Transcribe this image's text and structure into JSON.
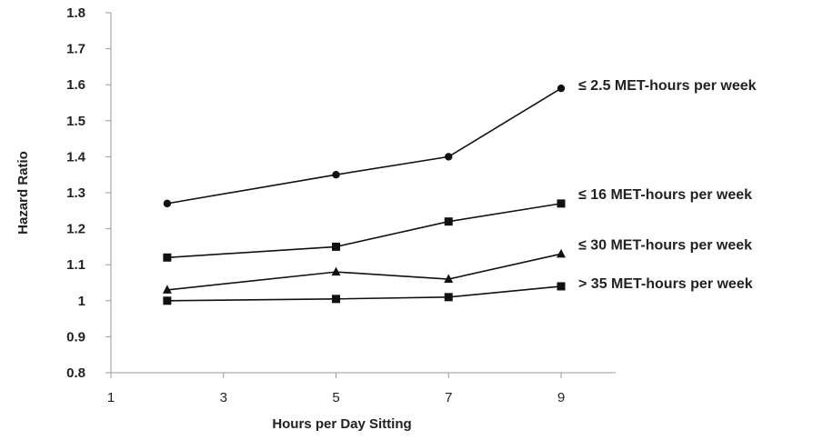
{
  "chart_data": {
    "type": "line",
    "xlabel": "Hours per Day Sitting",
    "ylabel": "Hazard Ratio",
    "x_ticks": [
      1,
      3,
      5,
      7,
      9
    ],
    "y_ticks": [
      "0.8",
      "0.9",
      "1",
      "1.1",
      "1.2",
      "1.3",
      "1.4",
      "1.5",
      "1.6",
      "1.7",
      "1.8"
    ],
    "xlim": [
      1,
      10
    ],
    "ylim": [
      0.8,
      1.8
    ],
    "grid": false,
    "legend": "none (series labeled at line ends)",
    "x": [
      2,
      5,
      7,
      9
    ],
    "series": [
      {
        "name": "≤ 2.5 MET-hours per week",
        "marker": "circle",
        "values": [
          1.27,
          1.35,
          1.4,
          1.59
        ]
      },
      {
        "name": "≤ 16 MET-hours per week",
        "marker": "square",
        "values": [
          1.12,
          1.15,
          1.22,
          1.27
        ]
      },
      {
        "name": "≤ 30 MET-hours per week",
        "marker": "triangle",
        "values": [
          1.03,
          1.08,
          1.06,
          1.13
        ]
      },
      {
        "name": "> 35 MET-hours per week",
        "marker": "square",
        "values": [
          1.0,
          1.005,
          1.01,
          1.04
        ]
      }
    ],
    "colors": {
      "line": "#111111",
      "axis": "#9a9a9a",
      "text": "#222222"
    }
  }
}
